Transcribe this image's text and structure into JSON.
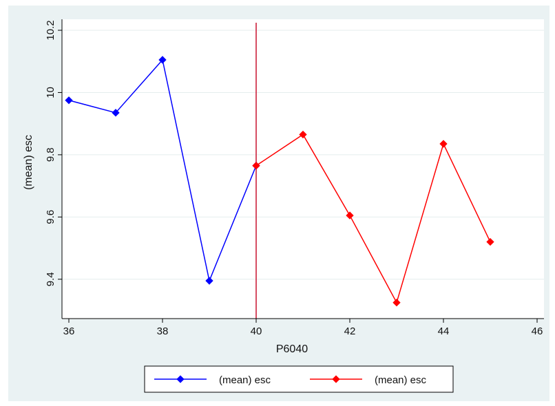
{
  "chart_data": {
    "type": "line",
    "title": "",
    "xlabel": "P6040",
    "ylabel": "(mean) esc",
    "xlim": [
      36,
      46
    ],
    "ylim": [
      9.3,
      10.2
    ],
    "x_ticks": [
      36,
      38,
      40,
      42,
      44,
      46
    ],
    "y_ticks": [
      9.4,
      9.6,
      9.8,
      10.0,
      10.2
    ],
    "x_tick_labels": [
      "36",
      "38",
      "40",
      "42",
      "44",
      "46"
    ],
    "y_tick_labels": [
      "9.4",
      "9.6",
      "9.8",
      "10",
      "10.2"
    ],
    "grid": "horizontal",
    "reference_line": {
      "x": 40,
      "color": "#c8102e"
    },
    "legend_position": "bottom",
    "series": [
      {
        "name": "(mean) esc",
        "color": "#0000ff",
        "x": [
          36,
          37,
          38,
          39,
          40
        ],
        "y": [
          9.975,
          9.935,
          10.105,
          9.395,
          9.765
        ]
      },
      {
        "name": "(mean) esc",
        "color": "#ff0000",
        "x": [
          40,
          41,
          42,
          43,
          44,
          45
        ],
        "y": [
          9.765,
          9.865,
          9.605,
          9.325,
          9.835,
          9.52
        ]
      }
    ]
  }
}
